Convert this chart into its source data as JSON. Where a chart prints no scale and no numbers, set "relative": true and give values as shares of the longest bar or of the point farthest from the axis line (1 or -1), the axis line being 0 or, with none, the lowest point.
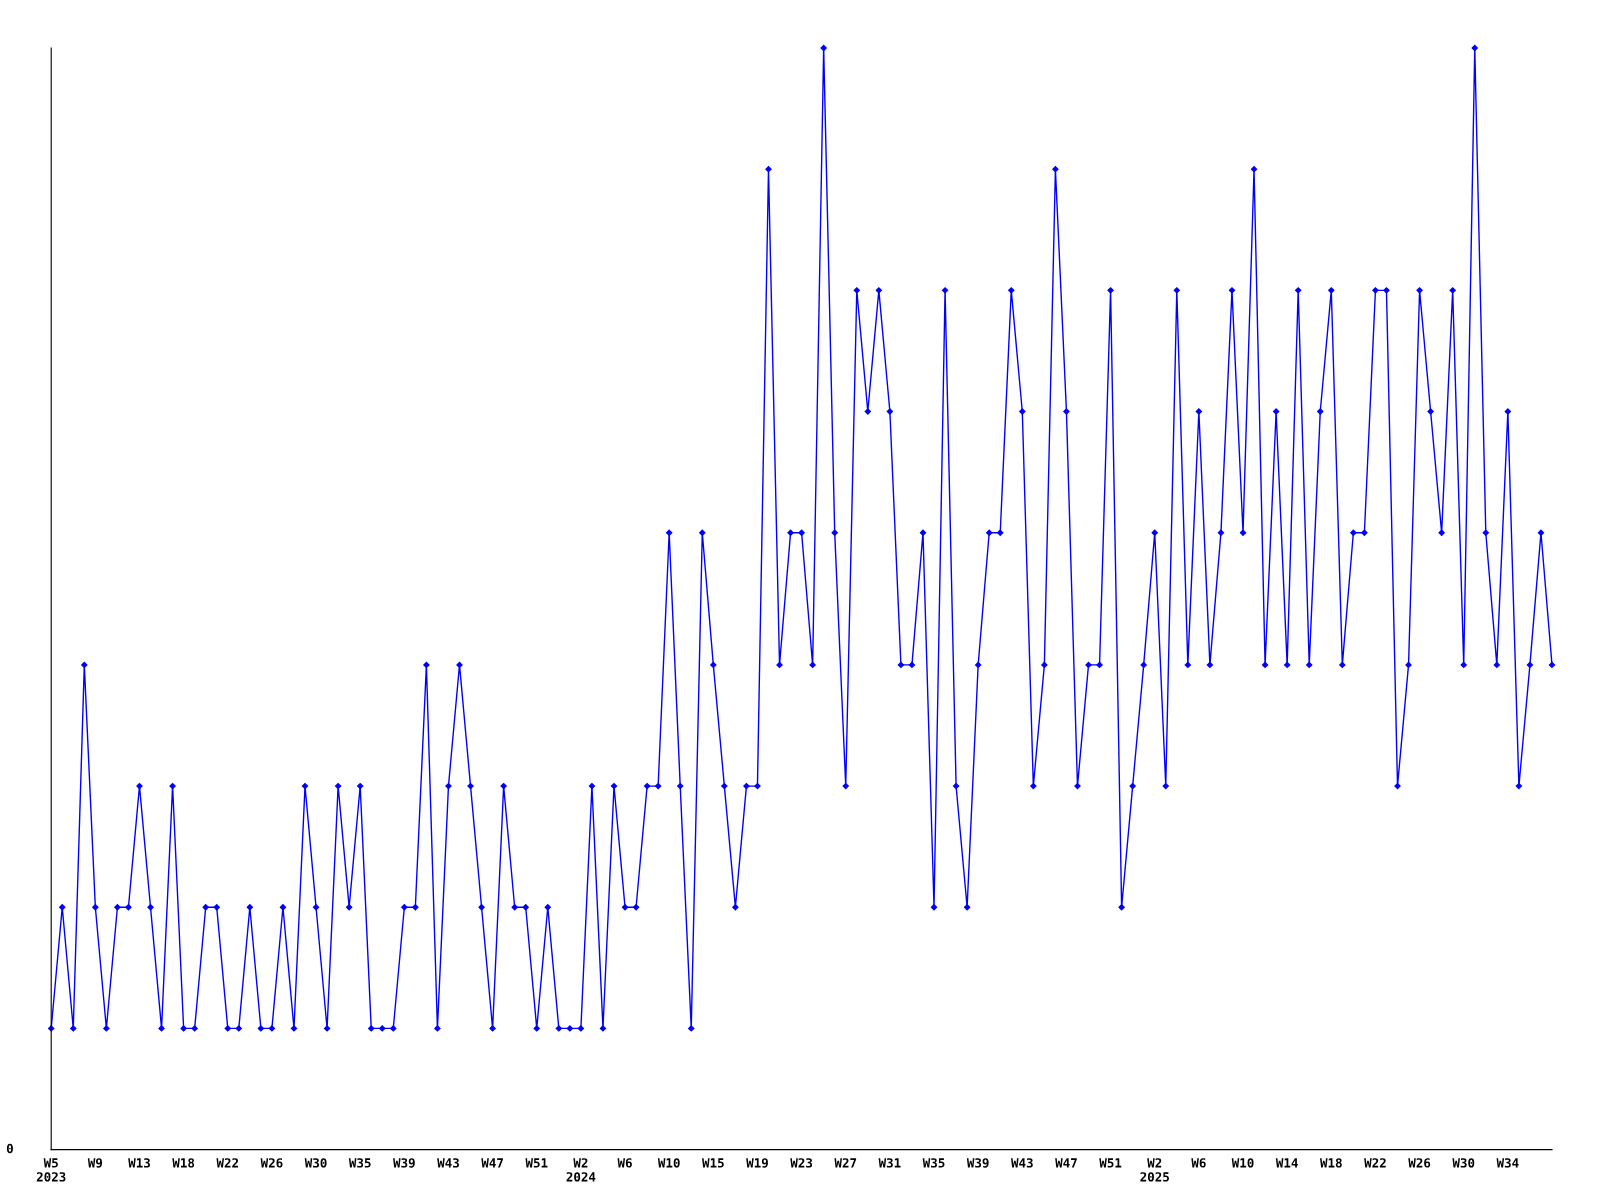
{
  "chart_data": {
    "type": "line",
    "relative": true,
    "categories": [
      "W5\n2023",
      null,
      null,
      null,
      "W9",
      null,
      null,
      null,
      "W13",
      null,
      null,
      null,
      "W18",
      null,
      null,
      null,
      "W22",
      null,
      null,
      null,
      "W26",
      null,
      null,
      null,
      "W30",
      null,
      null,
      null,
      "W35",
      null,
      null,
      null,
      "W39",
      null,
      null,
      null,
      "W43",
      null,
      null,
      null,
      "W47",
      null,
      null,
      null,
      "W51",
      null,
      null,
      null,
      "W2\n2024",
      null,
      null,
      null,
      "W6",
      null,
      null,
      null,
      "W10",
      null,
      null,
      null,
      "W15",
      null,
      null,
      null,
      "W19",
      null,
      null,
      null,
      "W23",
      null,
      null,
      null,
      "W27",
      null,
      null,
      null,
      "W31",
      null,
      null,
      null,
      "W35",
      null,
      null,
      null,
      "W39",
      null,
      null,
      null,
      "W43",
      null,
      null,
      null,
      "W47",
      null,
      null,
      null,
      "W51",
      null,
      null,
      null,
      "W2\n2025",
      null,
      null,
      null,
      "W6",
      null,
      null,
      null,
      "W10",
      null,
      null,
      null,
      "W14",
      null,
      null,
      null,
      "W18",
      null,
      null,
      null,
      "W22",
      null,
      null,
      null,
      "W26",
      null,
      null,
      null,
      "W30",
      null,
      null,
      null,
      "W34",
      null,
      null,
      null,
      null
    ],
    "series": [
      {
        "color": "#0000ff",
        "values": [
          0.11,
          0.22,
          0.11,
          0.44,
          0.22,
          0.11,
          0.22,
          0.22,
          0.33,
          0.22,
          0.11,
          0.33,
          0.11,
          0.11,
          0.22,
          0.22,
          0.11,
          0.11,
          0.22,
          0.11,
          0.11,
          0.22,
          0.11,
          0.33,
          0.22,
          0.11,
          0.33,
          0.22,
          0.33,
          0.11,
          0.11,
          0.11,
          0.22,
          0.22,
          0.44,
          0.11,
          0.33,
          0.44,
          0.33,
          0.22,
          0.11,
          0.33,
          0.22,
          0.22,
          0.11,
          0.22,
          0.11,
          0.11,
          0.11,
          0.33,
          0.11,
          0.33,
          0.22,
          0.22,
          0.33,
          0.33,
          0.56,
          0.33,
          0.11,
          0.56,
          0.44,
          0.33,
          0.22,
          0.33,
          0.33,
          0.89,
          0.44,
          0.56,
          0.56,
          0.44,
          1,
          0.56,
          0.33,
          0.78,
          0.67,
          0.78,
          0.67,
          0.44,
          0.44,
          0.56,
          0.22,
          0.78,
          0.33,
          0.22,
          0.44,
          0.56,
          0.56,
          0.78,
          0.67,
          0.33,
          0.44,
          0.89,
          0.67,
          0.33,
          0.44,
          0.44,
          0.78,
          0.22,
          0.33,
          0.44,
          0.56,
          0.33,
          0.78,
          0.44,
          0.67,
          0.44,
          0.56,
          0.78,
          0.56,
          0.89,
          0.44,
          0.67,
          0.44,
          0.78,
          0.44,
          0.67,
          0.78,
          0.44,
          0.56,
          0.56,
          0.78,
          0.78,
          0.33,
          0.44,
          0.78,
          0.67,
          0.56,
          0.78,
          0.44,
          1,
          0.56,
          0.44,
          0.67,
          0.33,
          0.44,
          0.56,
          0.44
        ]
      }
    ],
    "marker": "diamond",
    "line_style": "solid",
    "grid": false,
    "legend": false,
    "annotations": [
      "0"
    ]
  }
}
